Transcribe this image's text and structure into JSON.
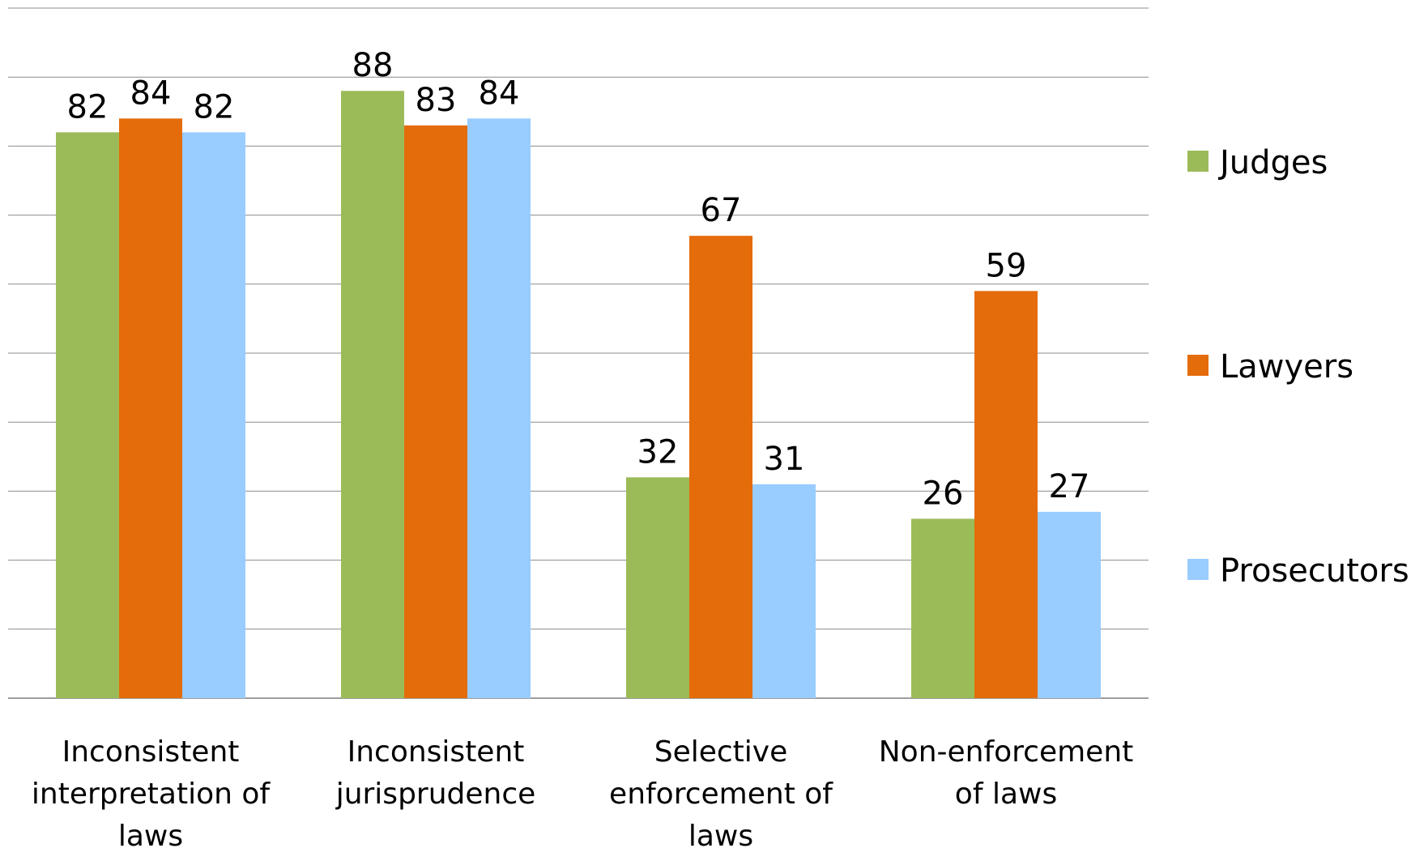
{
  "chart_data": {
    "type": "bar",
    "title": "",
    "xlabel": "",
    "ylabel": "",
    "ylim": [
      0,
      100
    ],
    "grid": true,
    "legend_position": "right",
    "categories": [
      "Inconsistent interpretation of laws",
      "Inconsistent jurisprudence",
      "Selective enforcement of laws",
      "Non-enforcement of laws"
    ],
    "category_lines": [
      [
        "Inconsistent",
        "interpretation of",
        "laws"
      ],
      [
        "Inconsistent",
        "jurisprudence"
      ],
      [
        "Selective",
        "enforcement of",
        "laws"
      ],
      [
        "Non-enforcement",
        "of laws"
      ]
    ],
    "series": [
      {
        "name": "Judges",
        "color": "#9BBB59",
        "values": [
          82,
          88,
          32,
          26
        ]
      },
      {
        "name": "Lawyers",
        "color": "#E46C0A",
        "values": [
          84,
          83,
          67,
          59
        ]
      },
      {
        "name": "Prosecutors",
        "color": "#99CCFF",
        "values": [
          82,
          84,
          31,
          27
        ]
      }
    ]
  }
}
